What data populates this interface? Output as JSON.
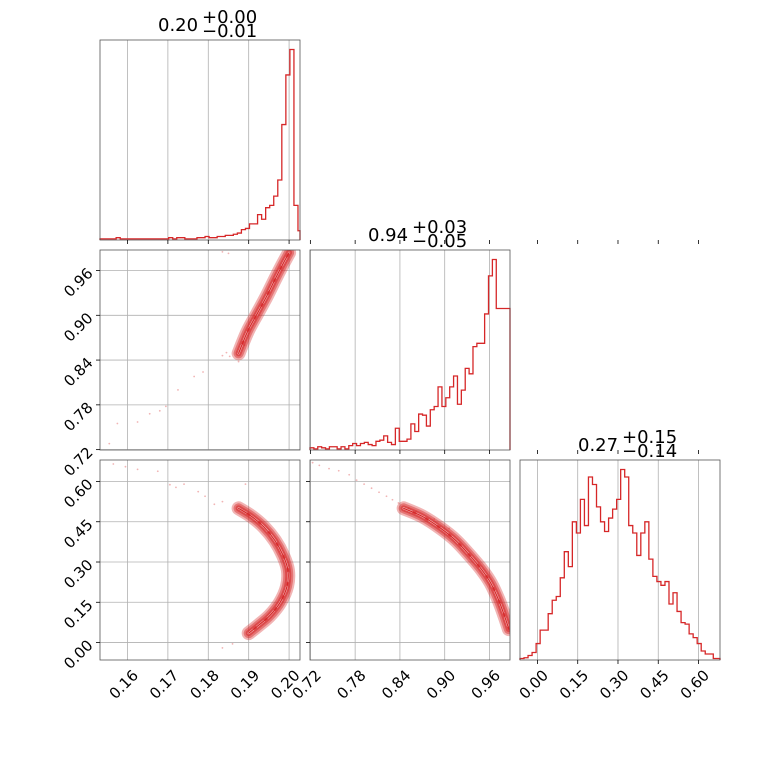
{
  "chart_data": {
    "type": "corner",
    "color": "#d62728",
    "parameters": [
      {
        "axis_ticks": [
          0.16,
          0.17,
          0.18,
          0.19,
          0.2
        ],
        "axis_tick_labels": [
          "0.16",
          "0.17",
          "0.18",
          "0.19",
          "0.20"
        ],
        "range": [
          0.1532,
          0.2027
        ],
        "summary": {
          "median": "0.20",
          "plus": "+0.00",
          "minus": "−0.01"
        }
      },
      {
        "axis_ticks": [
          0.72,
          0.78,
          0.84,
          0.9,
          0.96
        ],
        "axis_tick_labels": [
          "0.72",
          "0.78",
          "0.84",
          "0.90",
          "0.96"
        ],
        "range": [
          0.7195,
          0.9875
        ],
        "summary": {
          "median": "0.94",
          "plus": "+0.03",
          "minus": "−0.05"
        }
      },
      {
        "axis_ticks": [
          0.0,
          0.15,
          0.3,
          0.45,
          0.6
        ],
        "axis_tick_labels": [
          "0.00",
          "0.15",
          "0.30",
          "0.45",
          "0.60"
        ],
        "range": [
          -0.065,
          0.68
        ],
        "summary": {
          "median": "0.27",
          "plus": "+0.15",
          "minus": "−0.14"
        }
      }
    ],
    "histograms": [
      {
        "param": 0,
        "bin_edges": [
          0.1532,
          0.1542,
          0.1552,
          0.1562,
          0.1572,
          0.1582,
          0.1592,
          0.1602,
          0.1612,
          0.1622,
          0.1632,
          0.1642,
          0.1652,
          0.1662,
          0.1672,
          0.1682,
          0.1692,
          0.1702,
          0.1712,
          0.1722,
          0.1732,
          0.1742,
          0.1752,
          0.1762,
          0.1772,
          0.1782,
          0.1792,
          0.1802,
          0.1812,
          0.1822,
          0.1832,
          0.1842,
          0.1852,
          0.1862,
          0.1872,
          0.1882,
          0.1892,
          0.1902,
          0.1912,
          0.1922,
          0.1932,
          0.1942,
          0.1952,
          0.1962,
          0.1972,
          0.1982,
          0.1992,
          0.2002,
          0.2012,
          0.2022,
          0.2027
        ],
        "counts": [
          1,
          1,
          1,
          1,
          2,
          1,
          1,
          1,
          1,
          1,
          1,
          1,
          1,
          1,
          1,
          1,
          1,
          2,
          1,
          2,
          2,
          1,
          1,
          1,
          2,
          2,
          3,
          2,
          2,
          3,
          3,
          4,
          4,
          5,
          6,
          9,
          10,
          14,
          14,
          22,
          18,
          28,
          30,
          38,
          52,
          100,
          143,
          165,
          30,
          8
        ]
      },
      {
        "param": 1,
        "bin_edges": [
          0.7195,
          0.7247,
          0.7299,
          0.7351,
          0.7403,
          0.7455,
          0.7507,
          0.7559,
          0.7611,
          0.7663,
          0.7715,
          0.7767,
          0.7819,
          0.7871,
          0.7923,
          0.7975,
          0.8027,
          0.8079,
          0.8131,
          0.8183,
          0.8235,
          0.8287,
          0.8339,
          0.8391,
          0.8443,
          0.8495,
          0.8547,
          0.8599,
          0.8651,
          0.8703,
          0.8755,
          0.8807,
          0.8859,
          0.8911,
          0.8963,
          0.9015,
          0.9067,
          0.9119,
          0.9171,
          0.9223,
          0.9275,
          0.9327,
          0.9379,
          0.9431,
          0.9483,
          0.9535,
          0.9587,
          0.9639,
          0.9691,
          0.9743,
          0.9795,
          0.9875
        ],
        "counts": [
          2,
          1,
          3,
          2,
          1,
          3,
          3,
          1,
          3,
          1,
          4,
          6,
          4,
          6,
          7,
          5,
          4,
          8,
          9,
          13,
          7,
          5,
          20,
          8,
          8,
          10,
          24,
          17,
          33,
          32,
          22,
          37,
          40,
          58,
          40,
          48,
          58,
          68,
          42,
          55,
          75,
          70,
          95,
          98,
          98,
          125,
          160,
          175,
          130,
          130,
          130
        ]
      },
      {
        "param": 2,
        "bin_edges": [
          -0.065,
          -0.05,
          -0.035,
          -0.02,
          -0.005,
          0.01,
          0.025,
          0.04,
          0.055,
          0.07,
          0.085,
          0.1,
          0.115,
          0.13,
          0.145,
          0.16,
          0.175,
          0.19,
          0.205,
          0.22,
          0.235,
          0.25,
          0.265,
          0.28,
          0.295,
          0.31,
          0.325,
          0.34,
          0.355,
          0.37,
          0.385,
          0.4,
          0.415,
          0.43,
          0.445,
          0.46,
          0.475,
          0.49,
          0.505,
          0.52,
          0.535,
          0.55,
          0.565,
          0.58,
          0.595,
          0.61,
          0.625,
          0.64,
          0.655,
          0.68
        ],
        "counts": [
          2,
          3,
          6,
          10,
          22,
          40,
          40,
          62,
          80,
          85,
          110,
          145,
          125,
          185,
          170,
          215,
          180,
          245,
          235,
          205,
          185,
          172,
          190,
          202,
          215,
          255,
          245,
          180,
          170,
          140,
          170,
          185,
          135,
          112,
          105,
          100,
          105,
          75,
          90,
          65,
          50,
          48,
          35,
          30,
          22,
          12,
          8,
          8,
          2
        ]
      }
    ],
    "pair_panels": [
      {
        "x_param": 0,
        "y_param": 1,
        "contour_levels": 4,
        "ridge": [
          {
            "x": 0.1875,
            "y": 0.849
          },
          {
            "x": 0.1897,
            "y": 0.878
          },
          {
            "x": 0.1922,
            "y": 0.903
          },
          {
            "x": 0.1945,
            "y": 0.926
          },
          {
            "x": 0.1965,
            "y": 0.948
          },
          {
            "x": 0.1983,
            "y": 0.967
          },
          {
            "x": 0.1994,
            "y": 0.978
          },
          {
            "x": 0.2,
            "y": 0.984
          }
        ],
        "samples": [
          [
            0.1555,
            0.728
          ],
          [
            0.1575,
            0.755
          ],
          [
            0.1625,
            0.757
          ],
          [
            0.1655,
            0.768
          ],
          [
            0.168,
            0.772
          ],
          [
            0.1695,
            0.778
          ],
          [
            0.1725,
            0.8
          ],
          [
            0.1765,
            0.818
          ],
          [
            0.1787,
            0.824
          ],
          [
            0.1835,
            0.846
          ],
          [
            0.1853,
            0.845
          ],
          [
            0.1875,
            0.838
          ],
          [
            0.1845,
            0.85
          ],
          [
            0.189,
            0.86
          ],
          [
            0.185,
            0.983
          ],
          [
            0.1835,
            0.985
          ]
        ]
      },
      {
        "x_param": 0,
        "y_param": 2,
        "contour_levels": 4,
        "ridge": [
          {
            "x": 0.1875,
            "y": 0.5
          },
          {
            "x": 0.1907,
            "y": 0.47
          },
          {
            "x": 0.1938,
            "y": 0.43
          },
          {
            "x": 0.1965,
            "y": 0.38
          },
          {
            "x": 0.1985,
            "y": 0.325
          },
          {
            "x": 0.1997,
            "y": 0.27
          },
          {
            "x": 0.1995,
            "y": 0.21
          },
          {
            "x": 0.1978,
            "y": 0.15
          },
          {
            "x": 0.1952,
            "y": 0.1
          },
          {
            "x": 0.1925,
            "y": 0.065
          },
          {
            "x": 0.19,
            "y": 0.035
          }
        ],
        "samples": [
          [
            0.1565,
            0.665
          ],
          [
            0.1595,
            0.655
          ],
          [
            0.1625,
            0.645
          ],
          [
            0.1675,
            0.638
          ],
          [
            0.1705,
            0.588
          ],
          [
            0.172,
            0.578
          ],
          [
            0.174,
            0.59
          ],
          [
            0.1775,
            0.562
          ],
          [
            0.1792,
            0.545
          ],
          [
            0.1815,
            0.515
          ],
          [
            0.1835,
            0.525
          ],
          [
            0.1892,
            0.59
          ],
          [
            0.1835,
            -0.02
          ],
          [
            0.186,
            -0.005
          ]
        ]
      },
      {
        "x_param": 1,
        "y_param": 2,
        "contour_levels": 4,
        "ridge": [
          {
            "x": 0.845,
            "y": 0.5
          },
          {
            "x": 0.87,
            "y": 0.47
          },
          {
            "x": 0.895,
            "y": 0.425
          },
          {
            "x": 0.915,
            "y": 0.38
          },
          {
            "x": 0.935,
            "y": 0.32
          },
          {
            "x": 0.95,
            "y": 0.27
          },
          {
            "x": 0.962,
            "y": 0.22
          },
          {
            "x": 0.972,
            "y": 0.16
          },
          {
            "x": 0.98,
            "y": 0.1
          },
          {
            "x": 0.986,
            "y": 0.05
          }
        ],
        "samples": [
          [
            0.723,
            0.67
          ],
          [
            0.732,
            0.66
          ],
          [
            0.745,
            0.648
          ],
          [
            0.758,
            0.64
          ],
          [
            0.772,
            0.625
          ],
          [
            0.782,
            0.605
          ],
          [
            0.792,
            0.59
          ],
          [
            0.802,
            0.575
          ],
          [
            0.812,
            0.56
          ],
          [
            0.822,
            0.545
          ],
          [
            0.83,
            0.532
          ],
          [
            0.838,
            0.52
          ],
          [
            0.852,
            0.5
          ],
          [
            0.862,
            0.488
          ],
          [
            0.886,
            0.46
          ],
          [
            0.906,
            0.425
          ]
        ]
      }
    ],
    "grid": true,
    "legend": "none"
  }
}
